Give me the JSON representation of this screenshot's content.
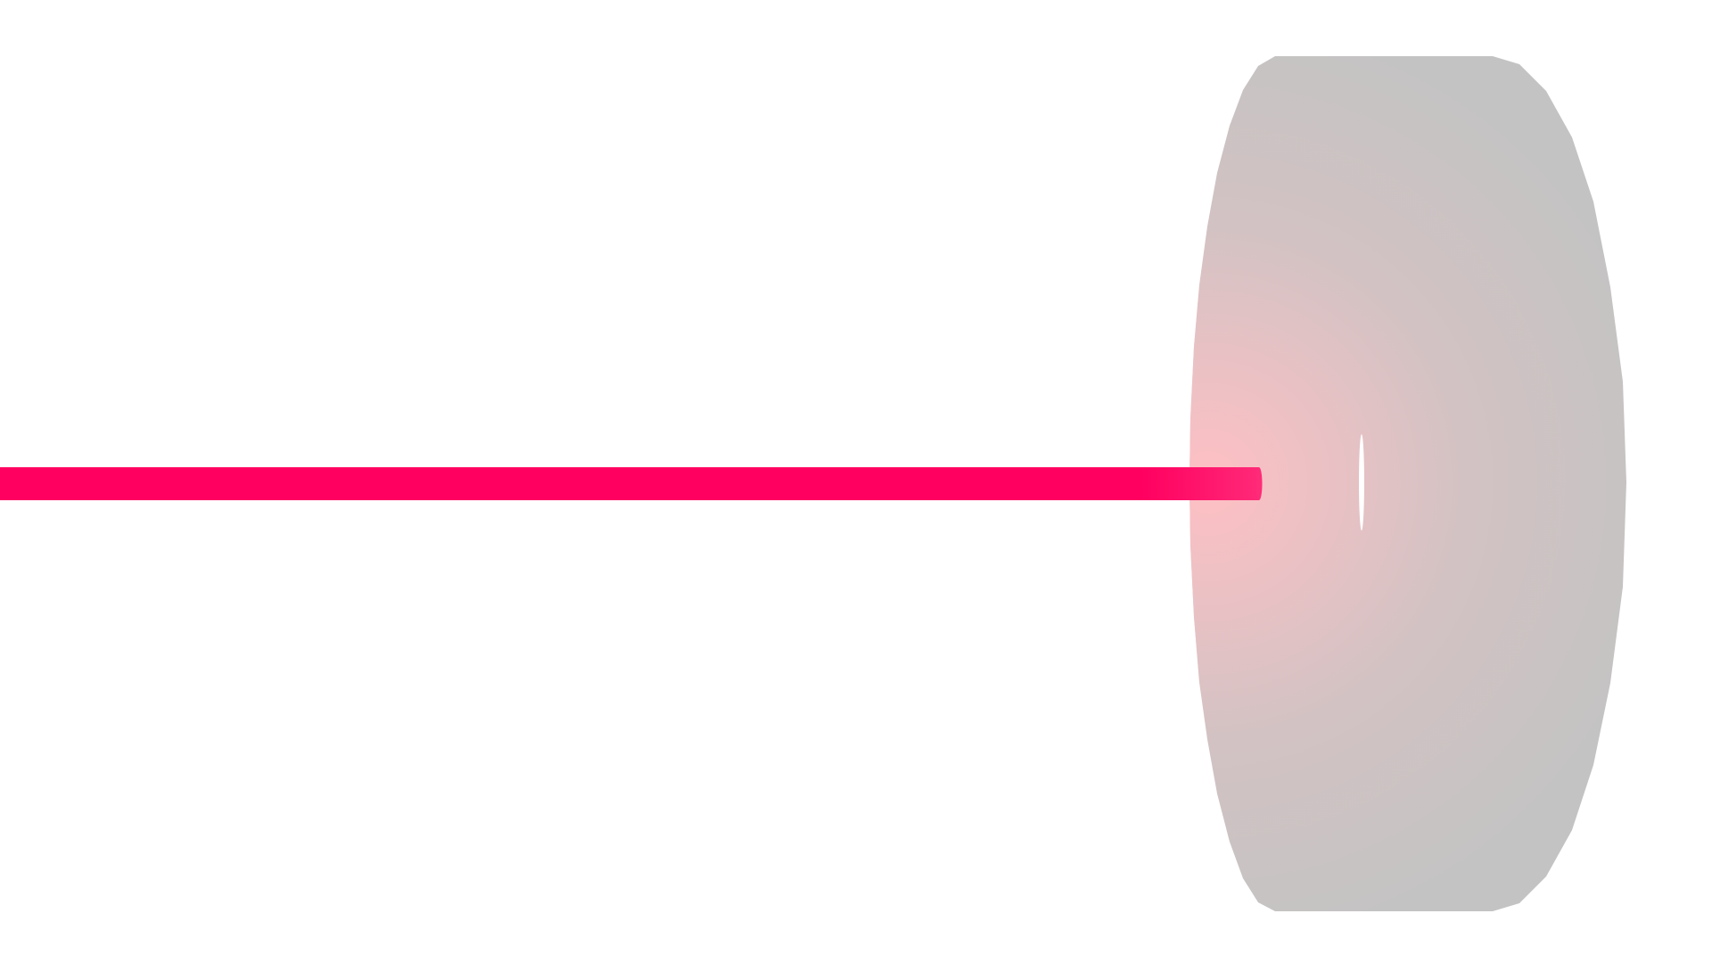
{
  "scene": {
    "background_color": "#ffffff",
    "beam": {
      "color": "#ff0060",
      "glow_color": "#ffc0c4"
    },
    "disc": {
      "color": "#c4c3c3"
    },
    "slit": {
      "color": "#ffffff"
    }
  }
}
